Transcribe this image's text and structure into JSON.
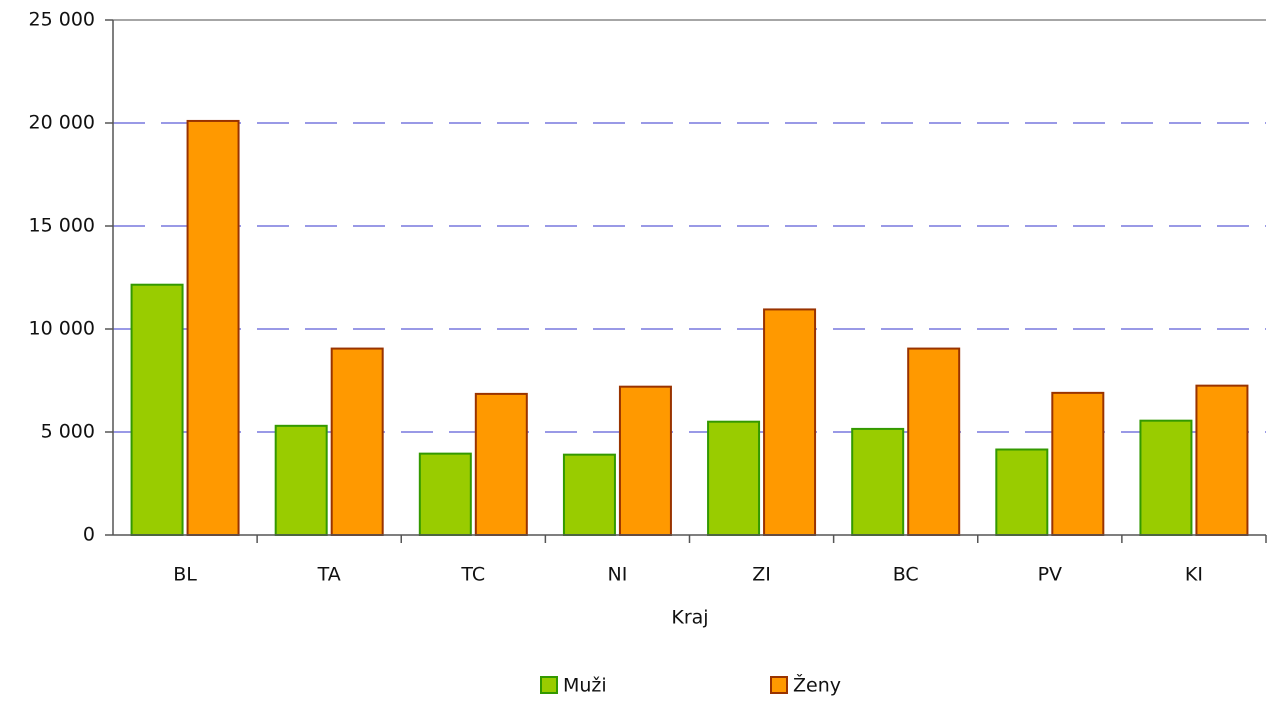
{
  "chart_data": {
    "type": "bar",
    "x_label": "Kraj",
    "categories": [
      "BL",
      "TA",
      "TC",
      "NI",
      "ZI",
      "BC",
      "PV",
      "KI"
    ],
    "series": [
      {
        "name": "Muži",
        "color": "#99cc00",
        "values": [
          12150,
          5300,
          3950,
          3900,
          5500,
          5150,
          4150,
          5550
        ]
      },
      {
        "name": "Ženy",
        "color": "#ff9900",
        "values": [
          20100,
          9050,
          6850,
          7200,
          10950,
          9050,
          6900,
          7250
        ]
      }
    ],
    "ylim": [
      0,
      25000
    ],
    "yticks": [
      0,
      {
        "value": 5000,
        "label": "5 000"
      },
      {
        "value": 10000,
        "label": "10 000"
      },
      {
        "value": 15000,
        "label": "15 000"
      },
      {
        "value": 20000,
        "label": "20 000"
      },
      {
        "value": 25000,
        "label": "25 000"
      }
    ],
    "grid": true,
    "legend": "bottom"
  }
}
